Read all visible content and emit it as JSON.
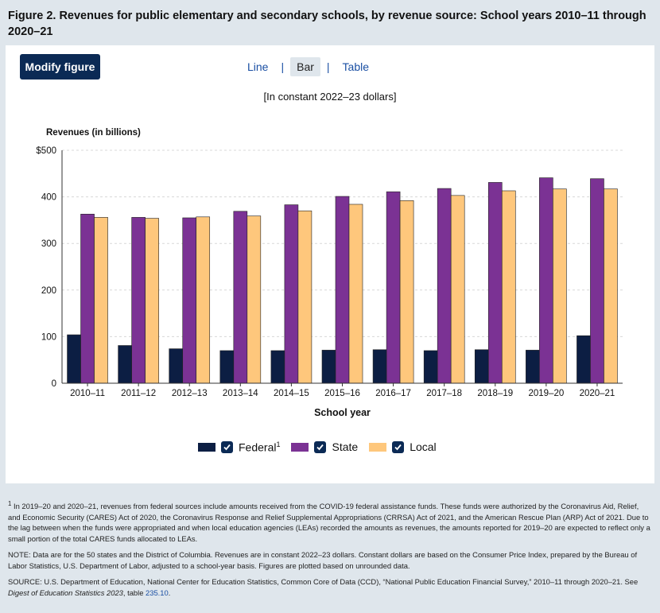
{
  "header": {
    "title": "Figure 2. Revenues for public elementary and secondary schools, by revenue source: School years 2010–11 through 2020–21"
  },
  "controls": {
    "modify_label": "Modify figure",
    "views": [
      "Line",
      "Bar",
      "Table"
    ],
    "active_view": "Bar",
    "separator": "|"
  },
  "colors": {
    "federal": "#0c1e43",
    "state": "#7b3294",
    "local": "#fec77c",
    "button": "#0b2a55",
    "link": "#1a4fa3"
  },
  "chart_data": {
    "type": "bar",
    "subtitle": "[In constant 2022–23 dollars]",
    "ylabel": "Revenues (in billions)",
    "xlabel": "School year",
    "ylim": [
      0,
      500
    ],
    "yticks": [
      0,
      100,
      200,
      300,
      400,
      500
    ],
    "ytick_labels": [
      "0",
      "100",
      "200",
      "300",
      "400",
      "$500"
    ],
    "grid": true,
    "categories": [
      "2010–11",
      "2011–12",
      "2012–13",
      "2013–14",
      "2014–15",
      "2015–16",
      "2016–17",
      "2017–18",
      "2018–19",
      "2019–20",
      "2020–21"
    ],
    "series": [
      {
        "name": "Federal",
        "values": [
          104,
          81,
          74,
          70,
          70,
          71,
          72,
          70,
          72,
          71,
          102
        ]
      },
      {
        "name": "State",
        "values": [
          363,
          356,
          355,
          369,
          383,
          401,
          411,
          418,
          431,
          441,
          439
        ]
      },
      {
        "name": "Local",
        "values": [
          356,
          354,
          357,
          359,
          370,
          384,
          392,
          403,
          413,
          417,
          417
        ]
      }
    ]
  },
  "legend": {
    "items": [
      {
        "label": "Federal",
        "sup": "1"
      },
      {
        "label": "State",
        "sup": ""
      },
      {
        "label": "Local",
        "sup": ""
      }
    ]
  },
  "notes": {
    "footnote_mark": "1",
    "footnote": "In 2019–20 and 2020–21, revenues from federal sources include amounts received from the COVID-19 federal assistance funds. These funds were authorized by the Coronavirus Aid, Relief, and Economic Security (CARES) Act of 2020, the Coronavirus Response and Relief Supplemental Appropriations (CRRSA) Act of 2021, and the American Rescue Plan (ARP) Act of 2021. Due to the lag between when the funds were appropriated and when local education agencies (LEAs) recorded the amounts as revenues, the amounts reported for 2019–20 are expected to reflect only a small portion of the total CARES funds allocated to LEAs.",
    "note": "NOTE: Data are for the 50 states and the District of Columbia. Revenues are in constant 2022–23 dollars. Constant dollars are based on the Consumer Price Index, prepared by the Bureau of Labor Statistics, U.S. Department of Labor, adjusted to a school-year basis. Figures are plotted based on unrounded data.",
    "source_pre": "SOURCE: U.S. Department of Education, National Center for Education Statistics, Common Core of Data (CCD), “National Public Education Financial Survey,” 2010–11 through 2020–21. See ",
    "source_italic": "Digest of Education Statistics 2023",
    "source_mid": ", table ",
    "source_link": "235.10",
    "source_end": "."
  }
}
